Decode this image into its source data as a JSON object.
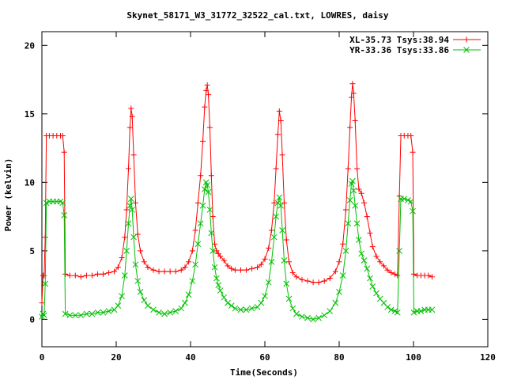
{
  "chart_data": {
    "type": "line",
    "title": "Skynet_58171_W3_31772_32522_cal.txt, LOWRES, daisy",
    "xlabel": "Time(Seconds)",
    "ylabel": "Power (kelvin)",
    "xlim": [
      0,
      120
    ],
    "ylim": [
      -2,
      21
    ],
    "xticks": [
      0,
      20,
      40,
      60,
      80,
      100,
      120
    ],
    "yticks": [
      0,
      5,
      10,
      15,
      20
    ],
    "grid": false,
    "legend_position": "top-right",
    "series": [
      {
        "name": "XL-35.73 Tsys:38.94",
        "color": "#ff0000",
        "marker": "plus",
        "points": [
          [
            0.0,
            1.2
          ],
          [
            0.3,
            3.2
          ],
          [
            0.6,
            3.2
          ],
          [
            0.9,
            6.0
          ],
          [
            1.2,
            13.4
          ],
          [
            2.0,
            13.4
          ],
          [
            3.0,
            13.4
          ],
          [
            4.0,
            13.4
          ],
          [
            5.0,
            13.4
          ],
          [
            5.6,
            13.4
          ],
          [
            6.0,
            12.2
          ],
          [
            6.3,
            3.3
          ],
          [
            7.5,
            3.2
          ],
          [
            9.0,
            3.2
          ],
          [
            10.5,
            3.1
          ],
          [
            12.0,
            3.2
          ],
          [
            13.5,
            3.2
          ],
          [
            15.0,
            3.3
          ],
          [
            16.5,
            3.3
          ],
          [
            18.0,
            3.4
          ],
          [
            19.5,
            3.5
          ],
          [
            20.5,
            3.8
          ],
          [
            21.5,
            4.5
          ],
          [
            22.3,
            6.0
          ],
          [
            22.8,
            8.0
          ],
          [
            23.3,
            11.0
          ],
          [
            23.7,
            14.0
          ],
          [
            24.0,
            15.4
          ],
          [
            24.3,
            14.8
          ],
          [
            24.7,
            12.0
          ],
          [
            25.2,
            8.5
          ],
          [
            25.8,
            6.2
          ],
          [
            26.5,
            5.0
          ],
          [
            27.5,
            4.2
          ],
          [
            28.5,
            3.8
          ],
          [
            30.0,
            3.6
          ],
          [
            31.5,
            3.5
          ],
          [
            33.0,
            3.5
          ],
          [
            34.5,
            3.5
          ],
          [
            36.0,
            3.5
          ],
          [
            37.5,
            3.6
          ],
          [
            38.5,
            3.8
          ],
          [
            39.5,
            4.2
          ],
          [
            40.5,
            5.0
          ],
          [
            41.3,
            6.5
          ],
          [
            42.0,
            8.5
          ],
          [
            42.7,
            10.5
          ],
          [
            43.3,
            13.0
          ],
          [
            43.8,
            15.5
          ],
          [
            44.2,
            16.7
          ],
          [
            44.5,
            17.1
          ],
          [
            44.8,
            16.4
          ],
          [
            45.2,
            14.0
          ],
          [
            45.6,
            10.5
          ],
          [
            46.0,
            7.5
          ],
          [
            46.5,
            5.5
          ],
          [
            47.0,
            5.0
          ],
          [
            47.5,
            4.8
          ],
          [
            48.0,
            4.6
          ],
          [
            49.0,
            4.3
          ],
          [
            50.0,
            3.9
          ],
          [
            51.0,
            3.7
          ],
          [
            52.0,
            3.6
          ],
          [
            53.5,
            3.6
          ],
          [
            55.0,
            3.6
          ],
          [
            56.5,
            3.7
          ],
          [
            58.0,
            3.8
          ],
          [
            59.0,
            4.0
          ],
          [
            60.0,
            4.4
          ],
          [
            61.0,
            5.2
          ],
          [
            61.8,
            6.5
          ],
          [
            62.5,
            8.5
          ],
          [
            63.0,
            11.0
          ],
          [
            63.5,
            13.5
          ],
          [
            63.9,
            15.2
          ],
          [
            64.3,
            14.5
          ],
          [
            64.7,
            12.0
          ],
          [
            65.2,
            8.5
          ],
          [
            65.8,
            5.8
          ],
          [
            66.5,
            4.2
          ],
          [
            67.5,
            3.4
          ],
          [
            68.5,
            3.1
          ],
          [
            70.0,
            2.9
          ],
          [
            71.5,
            2.8
          ],
          [
            73.0,
            2.7
          ],
          [
            74.5,
            2.7
          ],
          [
            76.0,
            2.8
          ],
          [
            77.5,
            3.0
          ],
          [
            79.0,
            3.5
          ],
          [
            80.0,
            4.2
          ],
          [
            81.0,
            5.5
          ],
          [
            81.8,
            8.0
          ],
          [
            82.4,
            11.0
          ],
          [
            82.9,
            14.0
          ],
          [
            83.3,
            16.2
          ],
          [
            83.6,
            17.2
          ],
          [
            83.9,
            16.5
          ],
          [
            84.3,
            14.5
          ],
          [
            84.8,
            11.0
          ],
          [
            85.3,
            9.5
          ],
          [
            86.0,
            9.2
          ],
          [
            86.7,
            8.5
          ],
          [
            87.5,
            7.5
          ],
          [
            88.3,
            6.3
          ],
          [
            89.0,
            5.3
          ],
          [
            90.0,
            4.6
          ],
          [
            91.0,
            4.2
          ],
          [
            92.0,
            3.9
          ],
          [
            93.0,
            3.6
          ],
          [
            94.0,
            3.4
          ],
          [
            95.0,
            3.3
          ],
          [
            95.7,
            3.2
          ],
          [
            96.2,
            9.0
          ],
          [
            96.6,
            13.4
          ],
          [
            97.5,
            13.4
          ],
          [
            98.5,
            13.4
          ],
          [
            99.3,
            13.4
          ],
          [
            99.8,
            12.2
          ],
          [
            100.1,
            3.3
          ],
          [
            101.0,
            3.2
          ],
          [
            102.0,
            3.2
          ],
          [
            103.0,
            3.2
          ],
          [
            104.0,
            3.2
          ],
          [
            105.0,
            3.1
          ]
        ]
      },
      {
        "name": "YR-33.36 Tsys:33.86",
        "color": "#00c000",
        "marker": "cross",
        "points": [
          [
            0.0,
            0.2
          ],
          [
            0.3,
            0.4
          ],
          [
            0.6,
            0.3
          ],
          [
            0.9,
            2.6
          ],
          [
            1.2,
            8.5
          ],
          [
            2.0,
            8.6
          ],
          [
            3.0,
            8.6
          ],
          [
            4.0,
            8.6
          ],
          [
            5.0,
            8.6
          ],
          [
            5.6,
            8.5
          ],
          [
            6.0,
            7.6
          ],
          [
            6.3,
            0.4
          ],
          [
            7.5,
            0.3
          ],
          [
            9.0,
            0.3
          ],
          [
            10.5,
            0.3
          ],
          [
            12.0,
            0.4
          ],
          [
            13.5,
            0.4
          ],
          [
            15.0,
            0.5
          ],
          [
            16.5,
            0.5
          ],
          [
            18.0,
            0.6
          ],
          [
            19.5,
            0.7
          ],
          [
            20.5,
            1.0
          ],
          [
            21.5,
            1.7
          ],
          [
            22.3,
            3.2
          ],
          [
            22.8,
            5.0
          ],
          [
            23.3,
            7.0
          ],
          [
            23.7,
            8.3
          ],
          [
            24.0,
            8.8
          ],
          [
            24.3,
            8.0
          ],
          [
            24.7,
            6.0
          ],
          [
            25.2,
            4.0
          ],
          [
            25.8,
            2.8
          ],
          [
            26.5,
            2.0
          ],
          [
            27.5,
            1.4
          ],
          [
            28.5,
            1.0
          ],
          [
            30.0,
            0.7
          ],
          [
            31.5,
            0.5
          ],
          [
            33.0,
            0.4
          ],
          [
            34.5,
            0.5
          ],
          [
            36.0,
            0.6
          ],
          [
            37.5,
            0.8
          ],
          [
            38.5,
            1.2
          ],
          [
            39.5,
            1.8
          ],
          [
            40.5,
            2.8
          ],
          [
            41.3,
            4.0
          ],
          [
            42.0,
            5.5
          ],
          [
            42.7,
            7.0
          ],
          [
            43.3,
            8.3
          ],
          [
            43.8,
            9.5
          ],
          [
            44.2,
            10.0
          ],
          [
            44.5,
            9.8
          ],
          [
            44.8,
            9.3
          ],
          [
            45.2,
            8.0
          ],
          [
            45.6,
            6.3
          ],
          [
            46.0,
            5.0
          ],
          [
            46.5,
            3.8
          ],
          [
            47.0,
            3.0
          ],
          [
            47.5,
            2.5
          ],
          [
            48.0,
            2.1
          ],
          [
            49.0,
            1.6
          ],
          [
            50.0,
            1.2
          ],
          [
            51.0,
            1.0
          ],
          [
            52.0,
            0.8
          ],
          [
            53.5,
            0.7
          ],
          [
            55.0,
            0.7
          ],
          [
            56.5,
            0.8
          ],
          [
            58.0,
            0.9
          ],
          [
            59.0,
            1.2
          ],
          [
            60.0,
            1.7
          ],
          [
            61.0,
            2.7
          ],
          [
            61.8,
            4.2
          ],
          [
            62.5,
            6.0
          ],
          [
            63.0,
            7.5
          ],
          [
            63.5,
            8.5
          ],
          [
            63.9,
            8.9
          ],
          [
            64.3,
            8.3
          ],
          [
            64.7,
            6.5
          ],
          [
            65.2,
            4.3
          ],
          [
            65.8,
            2.6
          ],
          [
            66.5,
            1.5
          ],
          [
            67.5,
            0.8
          ],
          [
            68.5,
            0.4
          ],
          [
            70.0,
            0.2
          ],
          [
            71.5,
            0.1
          ],
          [
            73.0,
            0.0
          ],
          [
            74.5,
            0.1
          ],
          [
            76.0,
            0.3
          ],
          [
            77.5,
            0.6
          ],
          [
            79.0,
            1.2
          ],
          [
            80.0,
            2.0
          ],
          [
            81.0,
            3.2
          ],
          [
            81.8,
            5.0
          ],
          [
            82.4,
            7.0
          ],
          [
            82.9,
            8.7
          ],
          [
            83.3,
            9.9
          ],
          [
            83.6,
            10.1
          ],
          [
            83.9,
            9.4
          ],
          [
            84.3,
            8.3
          ],
          [
            84.8,
            7.0
          ],
          [
            85.3,
            5.8
          ],
          [
            86.0,
            4.8
          ],
          [
            86.7,
            4.3
          ],
          [
            87.5,
            3.7
          ],
          [
            88.3,
            3.0
          ],
          [
            89.0,
            2.4
          ],
          [
            90.0,
            1.9
          ],
          [
            91.0,
            1.5
          ],
          [
            92.0,
            1.2
          ],
          [
            93.0,
            0.9
          ],
          [
            94.0,
            0.7
          ],
          [
            95.0,
            0.6
          ],
          [
            95.7,
            0.5
          ],
          [
            96.2,
            5.0
          ],
          [
            96.6,
            8.8
          ],
          [
            97.5,
            8.8
          ],
          [
            98.5,
            8.7
          ],
          [
            99.3,
            8.6
          ],
          [
            99.8,
            7.9
          ],
          [
            100.1,
            0.5
          ],
          [
            101.0,
            0.6
          ],
          [
            102.0,
            0.6
          ],
          [
            103.0,
            0.7
          ],
          [
            104.0,
            0.7
          ],
          [
            105.0,
            0.7
          ]
        ]
      }
    ]
  }
}
